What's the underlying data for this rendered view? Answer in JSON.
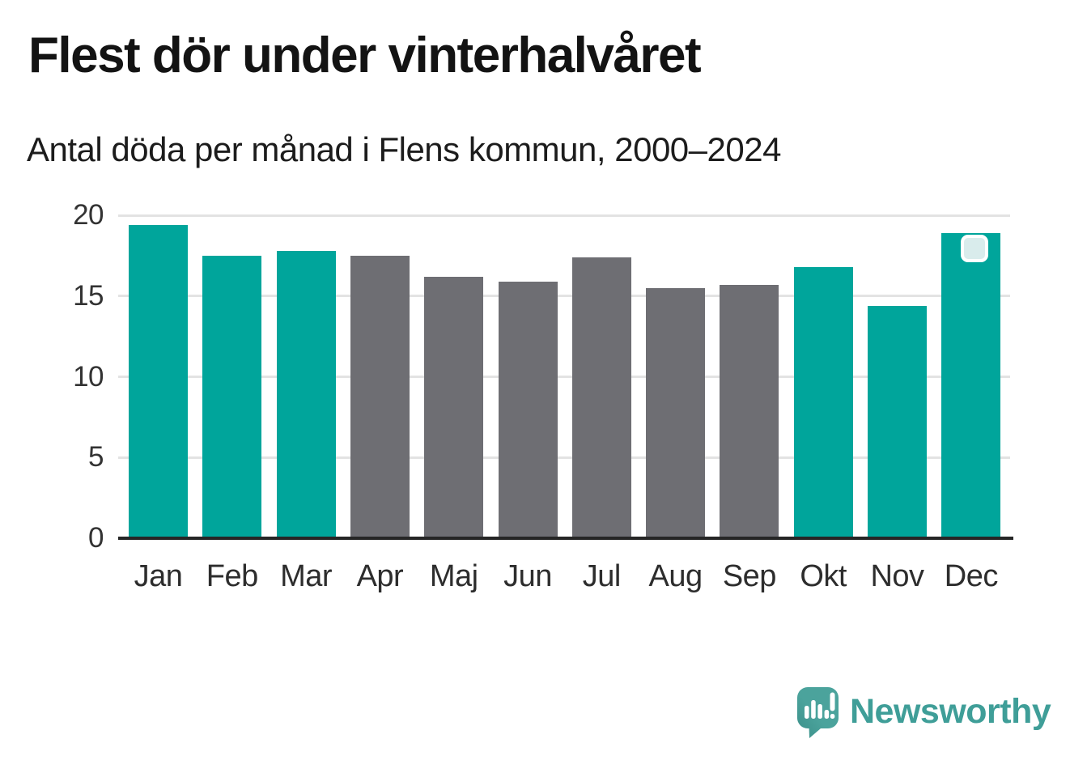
{
  "chart_data": {
    "type": "bar",
    "title": "Flest dör under vinterhalvåret",
    "subtitle": "Antal döda per månad i Flens kommun, 2000–2024",
    "categories": [
      "Jan",
      "Feb",
      "Mar",
      "Apr",
      "Maj",
      "Jun",
      "Jul",
      "Aug",
      "Sep",
      "Okt",
      "Nov",
      "Dec"
    ],
    "values": [
      19.4,
      17.5,
      17.8,
      17.5,
      16.2,
      15.9,
      17.4,
      15.5,
      15.7,
      16.8,
      14.4,
      18.9
    ],
    "highlighted": [
      true,
      true,
      true,
      false,
      false,
      false,
      false,
      false,
      false,
      true,
      true,
      true
    ],
    "highlight_color": "#00a59b",
    "default_color": "#6e6e73",
    "xlabel": "",
    "ylabel": "",
    "ylim": [
      0,
      20
    ],
    "yticks": [
      0,
      5,
      10,
      15,
      20
    ],
    "grid": true,
    "legend": false,
    "marker": {
      "category": "Dec",
      "fill": "#d9ecec",
      "border": "#ffffff"
    }
  },
  "footer": {
    "logo_text": "Newsworthy",
    "logo_text_color": "#3f9e98",
    "logo_mark_color": "#4aa29b"
  }
}
